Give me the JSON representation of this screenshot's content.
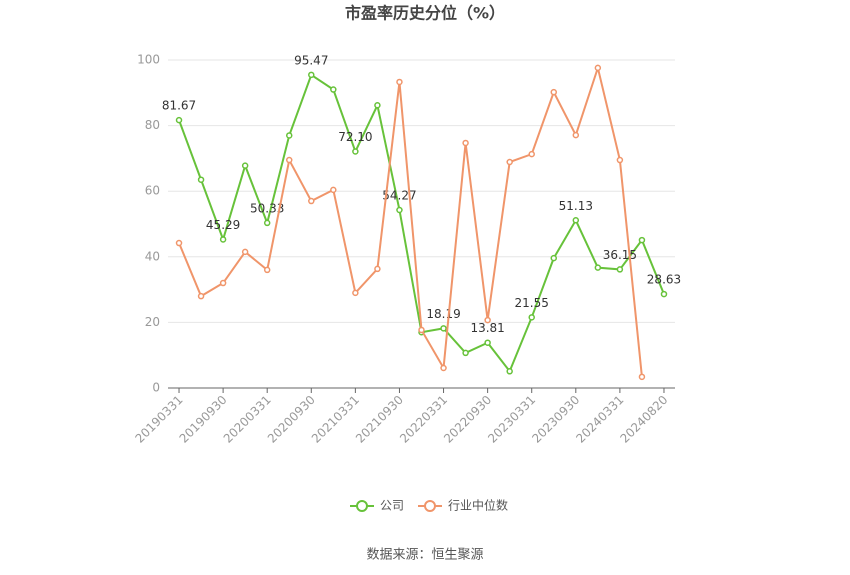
{
  "chart_data": {
    "type": "line",
    "title": "市盈率历史分位（%）",
    "source": "数据来源：恒生聚源",
    "categories": [
      "20190331",
      null,
      "20190930",
      null,
      "20200331",
      null,
      "20200930",
      null,
      "20210331",
      null,
      "20210930",
      null,
      "20220331",
      null,
      "20220930",
      null,
      "20230331",
      null,
      "20230930",
      null,
      "20240331",
      null,
      "20240820"
    ],
    "series": [
      {
        "name": "公司",
        "color": "#67c23a",
        "values": [
          81.67,
          63.5,
          45.29,
          67.8,
          50.33,
          77,
          95.47,
          91,
          72.1,
          86.2,
          54.27,
          17,
          18.19,
          10.7,
          13.81,
          5.1,
          21.55,
          39.6,
          51.13,
          36.7,
          36.15,
          45.1,
          28.63
        ],
        "value_labels": [
          "81.67",
          null,
          "45.29",
          null,
          "50.33",
          null,
          "95.47",
          null,
          "72.10",
          null,
          "54.27",
          null,
          "18.19",
          null,
          "13.81",
          null,
          "21.55",
          null,
          "51.13",
          null,
          "36.15",
          null,
          "28.63"
        ]
      },
      {
        "name": "行业中位数",
        "color": "#f0956a",
        "values": [
          44.2,
          28,
          32,
          41.5,
          36,
          69.5,
          57,
          60.4,
          29,
          36.3,
          93.3,
          17.7,
          6.1,
          74.7,
          20.7,
          68.9,
          71.3,
          90.2,
          77.1,
          97.6,
          69.5,
          3.4,
          null
        ]
      }
    ],
    "ylim": [
      0,
      100
    ],
    "yticks": [
      0,
      20,
      40,
      60,
      80,
      100
    ],
    "grid": true,
    "legend": "bottom"
  }
}
